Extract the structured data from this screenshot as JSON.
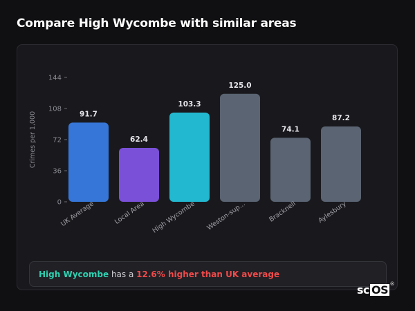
{
  "page": {
    "title": "Compare High Wycombe with similar areas"
  },
  "summary": {
    "area": "High Wycombe",
    "connector": " has a ",
    "difference": "12.6% higher than UK average"
  },
  "brand": {
    "prefix": "sc",
    "boxed": "OS",
    "mark": "®"
  },
  "chart_data": {
    "type": "bar",
    "title": "",
    "xlabel": "",
    "ylabel": "Crimes per 1,000",
    "ylim": [
      0,
      144
    ],
    "yticks": [
      0,
      36,
      72,
      108,
      144
    ],
    "grid": false,
    "legend": "none",
    "categories": [
      "UK Average",
      "Local Area",
      "High Wycombe",
      "Weston-sup...",
      "Bracknell",
      "Aylesbury"
    ],
    "values": [
      91.7,
      62.4,
      103.3,
      125.0,
      74.1,
      87.2
    ],
    "value_labels": [
      "91.7",
      "62.4",
      "103.3",
      "125.0",
      "74.1",
      "87.2"
    ],
    "colors": [
      "#3676d8",
      "#7a50d8",
      "#22b8d0",
      "#5a6472",
      "#5a6472",
      "#5a6472"
    ]
  }
}
